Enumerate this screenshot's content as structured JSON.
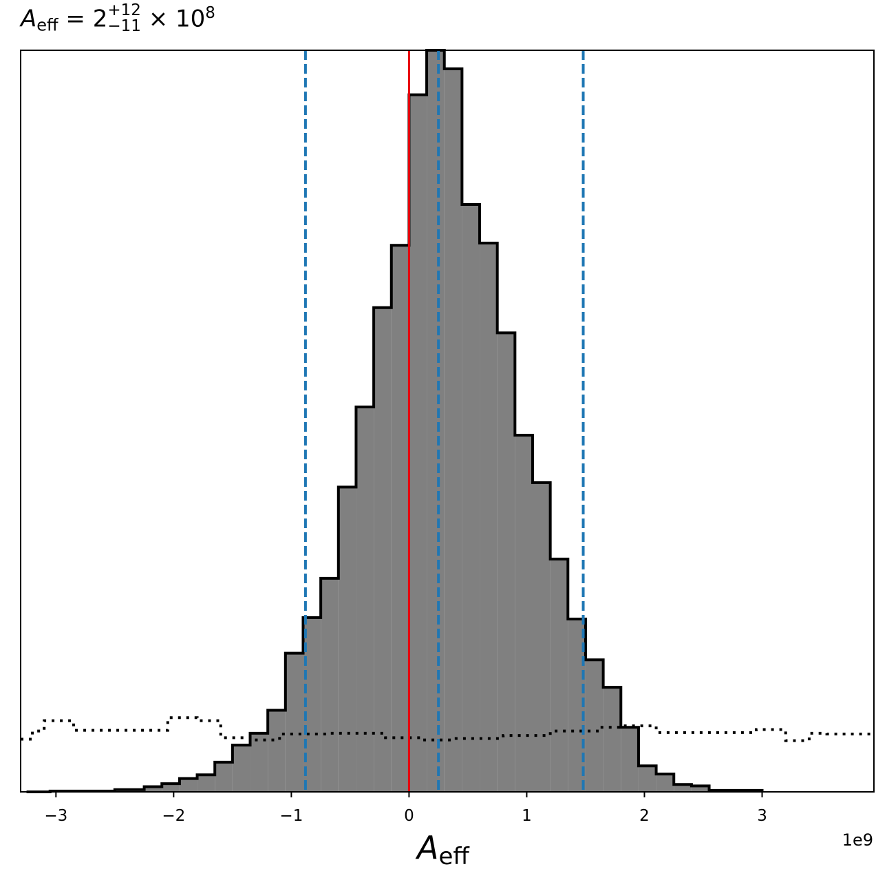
{
  "chart_data": {
    "type": "histogram",
    "title": {
      "symbol": "A",
      "subscript": "eff",
      "equals": "=",
      "median": "2",
      "upper": "+12",
      "lower": "−11",
      "times": "×",
      "base": "10",
      "exponent": "8"
    },
    "xlabel": {
      "symbol": "A",
      "subscript": "eff"
    },
    "x_offset_label": "1e9",
    "xlim": [
      -3.3,
      3.95
    ],
    "x_scale": 1000000000,
    "xticks": [
      {
        "value": -3,
        "label": "−3"
      },
      {
        "value": -2,
        "label": "−2"
      },
      {
        "value": -1,
        "label": "−1"
      },
      {
        "value": 0,
        "label": "0"
      },
      {
        "value": 1,
        "label": "1"
      },
      {
        "value": 2,
        "label": "2"
      },
      {
        "value": 3,
        "label": "3"
      }
    ],
    "ylim": [
      0,
      1.0
    ],
    "y_axis_visible": false,
    "posterior": {
      "bin_edges": [
        -3.25,
        -3.05,
        -2.95,
        -2.75,
        -2.5,
        -2.25,
        -2.1,
        -1.95,
        -1.8,
        -1.65,
        -1.5,
        -1.35,
        -1.2,
        -1.05,
        -0.9,
        -0.75,
        -0.6,
        -0.45,
        -0.3,
        -0.15,
        0.0,
        0.15,
        0.3,
        0.45,
        0.6,
        0.75,
        0.9,
        1.05,
        1.2,
        1.35,
        1.5,
        1.65,
        1.8,
        1.95,
        2.1,
        2.25,
        2.4,
        2.55,
        2.7,
        2.85,
        3.0
      ],
      "densities": [
        0.0,
        0.001,
        0.001,
        0.001,
        0.003,
        0.007,
        0.011,
        0.018,
        0.023,
        0.04,
        0.063,
        0.079,
        0.11,
        0.187,
        0.235,
        0.288,
        0.411,
        0.519,
        0.653,
        0.737,
        0.94,
        1.0,
        0.975,
        0.792,
        0.74,
        0.619,
        0.481,
        0.417,
        0.314,
        0.233,
        0.178,
        0.141,
        0.087,
        0.035,
        0.024,
        0.01,
        0.008,
        0.002,
        0.002,
        0.002
      ],
      "fill_color": "#808080",
      "edge_color": "#000000"
    },
    "prior": {
      "bin_edges": [
        -3.3,
        -3.2,
        -3.1,
        -2.85,
        -2.5,
        -2.05,
        -1.8,
        -1.6,
        -1.35,
        -1.1,
        -0.7,
        -0.2,
        0.1,
        0.4,
        0.8,
        1.2,
        1.6,
        1.8,
        2.1,
        2.5,
        2.95,
        3.2,
        3.4,
        3.55,
        3.95
      ],
      "densities": [
        0.071,
        0.082,
        0.096,
        0.083,
        0.083,
        0.1,
        0.096,
        0.073,
        0.07,
        0.078,
        0.079,
        0.073,
        0.07,
        0.072,
        0.076,
        0.082,
        0.087,
        0.089,
        0.08,
        0.08,
        0.084,
        0.069,
        0.079,
        0.078
      ],
      "line_style": "dotted",
      "color": "#000000"
    },
    "vertical_lines": [
      {
        "name": "true-value",
        "x": 0.0,
        "style": "solid",
        "color": "#e8000b"
      },
      {
        "name": "lower-quantile",
        "x": -0.88,
        "style": "dashed",
        "color": "#1f77b4"
      },
      {
        "name": "median",
        "x": 0.25,
        "style": "dashed",
        "color": "#1f77b4"
      },
      {
        "name": "upper-quantile",
        "x": 1.48,
        "style": "dashed",
        "color": "#1f77b4"
      }
    ],
    "grid": false,
    "legend": "none"
  }
}
